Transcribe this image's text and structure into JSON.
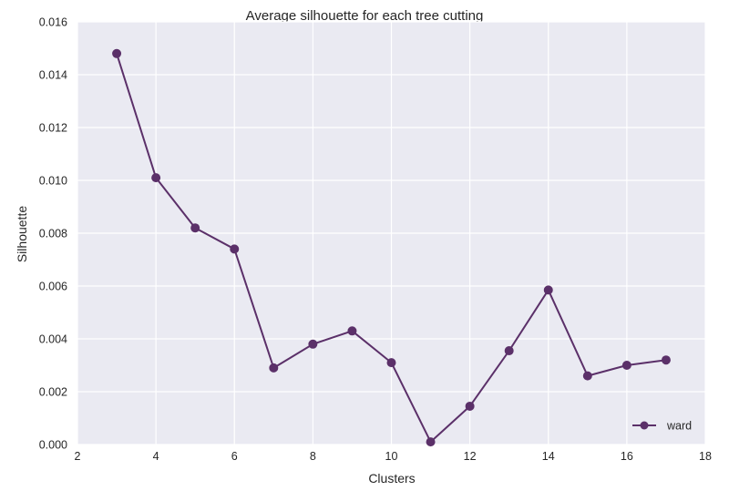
{
  "chart_data": {
    "type": "line",
    "title": "Average silhouette for each tree cutting",
    "xlabel": "Clusters",
    "ylabel": "Silhouette",
    "xlim": [
      2,
      18
    ],
    "ylim": [
      0.0,
      0.016
    ],
    "xticks": [
      2,
      4,
      6,
      8,
      10,
      12,
      14,
      16,
      18
    ],
    "yticks": [
      0.0,
      0.002,
      0.004,
      0.006,
      0.008,
      0.01,
      0.012,
      0.014,
      0.016
    ],
    "xtick_labels": [
      "2",
      "4",
      "6",
      "8",
      "10",
      "12",
      "14",
      "16",
      "18"
    ],
    "ytick_labels": [
      "0.000",
      "0.002",
      "0.004",
      "0.006",
      "0.008",
      "0.010",
      "0.012",
      "0.014",
      "0.016"
    ],
    "grid": true,
    "legend_position": "lower-right",
    "background_color": "#eaeaf2",
    "grid_color": "#ffffff",
    "series": [
      {
        "name": "ward",
        "color": "#5b3069",
        "marker": "circle",
        "x": [
          3,
          4,
          5,
          6,
          7,
          8,
          9,
          10,
          11,
          12,
          13,
          14,
          15,
          16,
          17
        ],
        "y": [
          0.0148,
          0.0101,
          0.0082,
          0.0074,
          0.0029,
          0.0038,
          0.0043,
          0.0031,
          0.0001,
          0.00145,
          0.00355,
          0.00585,
          0.0026,
          0.003,
          0.0032
        ]
      }
    ]
  }
}
